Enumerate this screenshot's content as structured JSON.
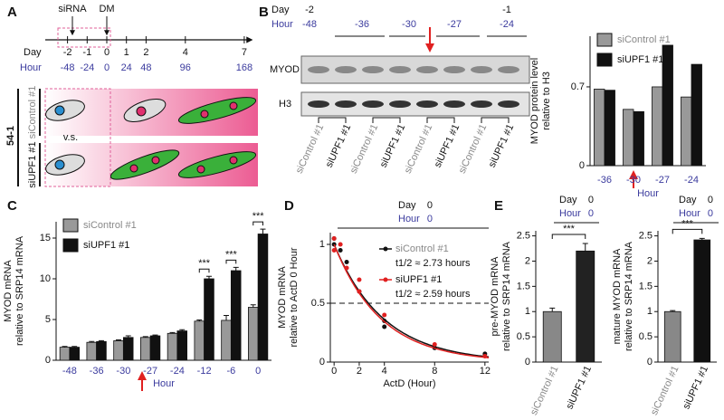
{
  "panel_labels": [
    "A",
    "B",
    "C",
    "D",
    "E"
  ],
  "timeline": {
    "day_label": "Day",
    "hour_label": "Hour",
    "days": [
      -2,
      -1,
      0,
      1,
      2,
      4,
      7
    ],
    "hours": [
      -48,
      -24,
      0,
      24,
      48,
      96,
      168
    ],
    "sirna": "siRNA",
    "dm": "DM",
    "cell_line": "54-1",
    "conditions": [
      "siControl #1",
      "siUPF1 #1"
    ],
    "vs": "v.s."
  },
  "blot": {
    "day_label": "Day",
    "hour_label": "Hour",
    "days": [
      -2,
      -1
    ],
    "hours": [
      -48,
      -36,
      -30,
      -27,
      -24
    ],
    "bands": [
      "MYOD",
      "H3"
    ],
    "lanes": [
      "siControl #1",
      "siUPF1 #1",
      "siControl #1",
      "siUPF1 #1",
      "siControl #1",
      "siUPF1 #1",
      "siControl #1",
      "siUPF1 #1"
    ]
  },
  "chart_data": [
    {
      "type": "bar",
      "ylabel": [
        "MYOD protein level",
        "relative to H3"
      ],
      "xlabel": "Hour",
      "categories": [
        "-36",
        "-30",
        "-27",
        "-24"
      ],
      "series": [
        {
          "name": "siControl #1",
          "color": "#999999",
          "values": [
            0.68,
            0.5,
            0.7,
            0.61
          ]
        },
        {
          "name": "siUPF1 #1",
          "color": "#111111",
          "values": [
            0.67,
            0.48,
            1.07,
            0.9
          ]
        }
      ],
      "ylim": [
        0,
        1.15
      ],
      "yticks": [
        0,
        0.7
      ],
      "legend": "top-left"
    },
    {
      "type": "bar",
      "ylabel": [
        "MYOD mRNA",
        "relative to SRP14 mRNA"
      ],
      "xlabel": "Hour",
      "categories": [
        "-48",
        "-36",
        "-30",
        "-27",
        "-24",
        "-12",
        "-6",
        "0"
      ],
      "series": [
        {
          "name": "siControl #1",
          "color": "#999999",
          "values": [
            1.6,
            2.2,
            2.4,
            2.8,
            3.3,
            4.8,
            4.9,
            6.5
          ],
          "errors": [
            0.1,
            0.1,
            0.1,
            0.1,
            0.1,
            0.15,
            0.6,
            0.3
          ]
        },
        {
          "name": "siUPF1 #1",
          "color": "#111111",
          "values": [
            1.6,
            2.3,
            2.8,
            3.0,
            3.6,
            10,
            11,
            15.5
          ],
          "errors": [
            0.1,
            0.1,
            0.2,
            0.1,
            0.15,
            0.3,
            0.4,
            0.6
          ]
        }
      ],
      "significance": [
        null,
        null,
        null,
        null,
        null,
        "***",
        "***",
        "***"
      ],
      "ylim": [
        0,
        17
      ],
      "yticks": [
        0,
        5,
        10,
        15
      ],
      "legend": "top-left"
    },
    {
      "type": "scatter",
      "header": {
        "day_label": "Day",
        "day": 0,
        "hour_label": "Hour",
        "hour": 0
      },
      "ylabel": [
        "MYOD mRNA",
        "relative to ActD 0 Hour"
      ],
      "xlabel": "ActD (Hour)",
      "xlim": [
        -0.3,
        12.3
      ],
      "ylim": [
        0,
        1.1
      ],
      "xticks": [
        0,
        2,
        4,
        8,
        12
      ],
      "yticks": [
        0,
        0.5,
        1
      ],
      "reference_line": 0.5,
      "series": [
        {
          "name": "siControl #1",
          "color": "#111111",
          "half_life": 2.73,
          "half_life_label": "t1/2 ≈ 2.73 hours",
          "x": [
            0,
            0,
            0.5,
            1,
            2,
            4,
            4,
            8,
            12
          ],
          "values": [
            1.0,
            1.05,
            0.95,
            0.85,
            0.6,
            0.35,
            0.3,
            0.12,
            0.07
          ]
        },
        {
          "name": "siUPF1 #1",
          "color": "#e02020",
          "half_life": 2.59,
          "half_life_label": "t1/2 ≈ 2.59 hours",
          "x": [
            0,
            0,
            0.5,
            1,
            2,
            2,
            4,
            8,
            12
          ],
          "values": [
            1.05,
            0.95,
            1.0,
            0.8,
            0.7,
            0.6,
            0.4,
            0.15,
            0.05
          ]
        }
      ],
      "legend": "top-right"
    },
    {
      "type": "bar",
      "header": {
        "day_label": "Day",
        "day": 0,
        "hour_label": "Hour",
        "hour": 0
      },
      "ylabel": [
        "pre-MYOD mRNA",
        "relative to SRP14 mRNA"
      ],
      "categories": [
        "siControl #1",
        "siUPF1 #1"
      ],
      "values": [
        1,
        2.2
      ],
      "errors": [
        0.07,
        0.15
      ],
      "colors": [
        "#888888",
        "#222222"
      ],
      "significance": "***",
      "ylim": [
        0,
        2.6
      ],
      "yticks": [
        0,
        0.5,
        1,
        1.5,
        2,
        2.5
      ]
    },
    {
      "type": "bar",
      "header": {
        "day_label": "Day",
        "day": 0,
        "hour_label": "Hour",
        "hour": 0
      },
      "ylabel": [
        "mature MYOD mRNA",
        "relative to SRP14 mRNA"
      ],
      "categories": [
        "siControl #1",
        "siUPF1 #1"
      ],
      "values": [
        1,
        2.42
      ],
      "errors": [
        0.02,
        0.03
      ],
      "colors": [
        "#888888",
        "#111111"
      ],
      "significance": "***",
      "ylim": [
        0,
        2.6
      ],
      "yticks": [
        0,
        0.5,
        1,
        1.5,
        2,
        2.5
      ]
    }
  ]
}
